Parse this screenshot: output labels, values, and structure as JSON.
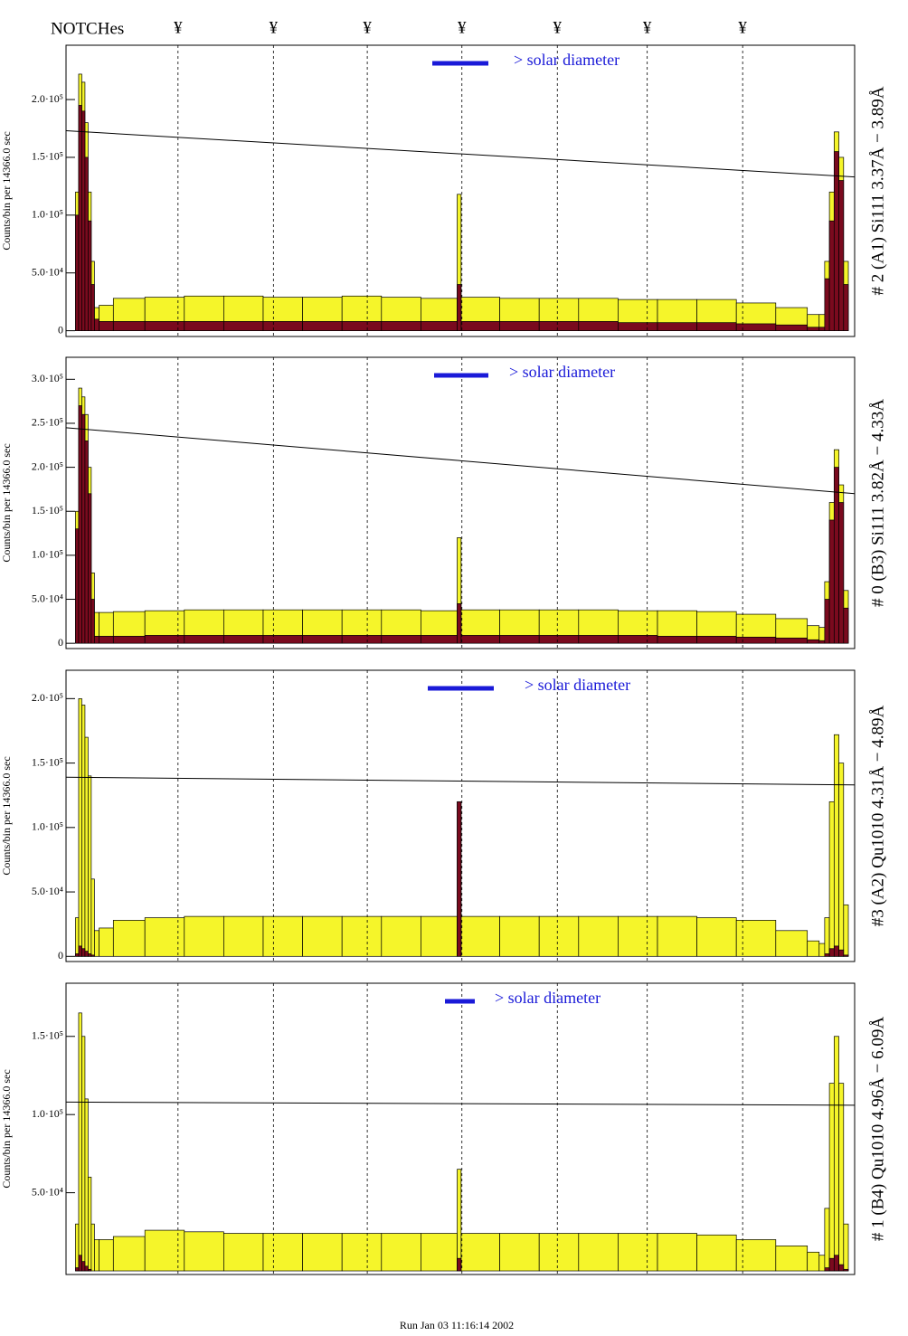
{
  "notches": {
    "label": "NOTCHes",
    "symbol": "¥",
    "x": [
      14.2,
      26.3,
      38.2,
      50.2,
      62.3,
      73.7,
      85.8
    ]
  },
  "footer": "Run    Jan 03 11:16:14 2002",
  "chart_data": [
    {
      "type": "histogram",
      "title": "# 2 (A1) Si111  3.37Å − 3.89Å",
      "ylabel": "Counts/bin per  14366.0 sec",
      "legend_label": "> solar diameter",
      "legend_color": "#1a1ad8",
      "xlim": [
        0,
        100
      ],
      "ylim": [
        -5000,
        247000
      ],
      "yticks": [
        0,
        {
          "value": 50000,
          "label": "5.0·10⁴"
        },
        {
          "value": 100000,
          "label": "1.0·10⁵"
        },
        {
          "value": 150000,
          "label": "1.5·10⁵"
        },
        {
          "value": 200000,
          "label": "2.0·10⁵"
        }
      ],
      "fit": [
        173000,
        133000
      ],
      "bins": [
        0,
        1.2,
        1.6,
        2.0,
        2.4,
        2.8,
        3.2,
        3.6,
        4.2,
        6,
        10,
        15,
        20,
        25,
        30,
        35,
        40,
        45,
        49.6,
        50.1,
        55,
        60,
        65,
        70,
        75,
        80,
        85,
        90,
        94,
        95.5,
        96.2,
        96.8,
        97.4,
        98,
        98.6,
        99.2,
        100
      ],
      "series": [
        {
          "color": "#f5f52a",
          "values": [
            0,
            120000,
            222000,
            215000,
            180000,
            120000,
            60000,
            20000,
            22000,
            28000,
            29000,
            30000,
            30000,
            29000,
            29000,
            30000,
            29000,
            28000,
            118000,
            29000,
            28000,
            28000,
            28000,
            27000,
            27000,
            27000,
            24000,
            20000,
            14000,
            14000,
            60000,
            120000,
            172000,
            150000,
            60000,
            0
          ]
        },
        {
          "color": "#7a0a1e",
          "values": [
            0,
            100000,
            195000,
            190000,
            150000,
            95000,
            40000,
            10000,
            8000,
            8000,
            8000,
            8000,
            8000,
            8000,
            8000,
            8000,
            8000,
            8000,
            40000,
            8000,
            8000,
            8000,
            8000,
            7000,
            7000,
            7000,
            6000,
            5000,
            3000,
            3000,
            45000,
            95000,
            155000,
            130000,
            40000,
            0
          ]
        }
      ]
    },
    {
      "type": "histogram",
      "title": "# 0 (B3) Si111  3.82Å − 4.33Å",
      "ylabel": "Counts/bin per  14366.0 sec",
      "legend_label": "> solar diameter",
      "legend_color": "#1a1ad8",
      "xlim": [
        0,
        100
      ],
      "ylim": [
        -6000,
        325000
      ],
      "yticks": [
        0,
        {
          "value": 50000,
          "label": "5.0·10⁴"
        },
        {
          "value": 100000,
          "label": "1.0·10⁵"
        },
        {
          "value": 150000,
          "label": "1.5·10⁵"
        },
        {
          "value": 200000,
          "label": "2.0·10⁵"
        },
        {
          "value": 250000,
          "label": "2.5·10⁵"
        },
        {
          "value": 300000,
          "label": "3.0·10⁵"
        }
      ],
      "fit": [
        245000,
        170000
      ],
      "bins": [
        0,
        1.2,
        1.6,
        2.0,
        2.4,
        2.8,
        3.2,
        3.6,
        4.2,
        6,
        10,
        15,
        20,
        25,
        30,
        35,
        40,
        45,
        49.6,
        50.1,
        55,
        60,
        65,
        70,
        75,
        80,
        85,
        90,
        94,
        95.5,
        96.2,
        96.8,
        97.4,
        98,
        98.6,
        99.2,
        100
      ],
      "series": [
        {
          "color": "#f5f52a",
          "values": [
            0,
            150000,
            290000,
            280000,
            260000,
            200000,
            80000,
            35000,
            35000,
            36000,
            37000,
            38000,
            38000,
            38000,
            38000,
            38000,
            38000,
            37000,
            120000,
            38000,
            38000,
            38000,
            38000,
            37000,
            37000,
            36000,
            33000,
            28000,
            20000,
            18000,
            70000,
            160000,
            220000,
            180000,
            60000,
            0
          ]
        },
        {
          "color": "#7a0a1e",
          "values": [
            0,
            130000,
            270000,
            260000,
            230000,
            170000,
            50000,
            8000,
            8000,
            8000,
            9000,
            9000,
            9000,
            9000,
            9000,
            9000,
            9000,
            9000,
            45000,
            9000,
            9000,
            9000,
            9000,
            9000,
            8000,
            8000,
            7000,
            6000,
            4000,
            3000,
            50000,
            140000,
            200000,
            160000,
            40000,
            0
          ]
        }
      ]
    },
    {
      "type": "histogram",
      "title": "#3 (A2) Qu1010  4.31Å − 4.89Å",
      "ylabel": "Counts/bin per  14366.0 sec",
      "legend_label": "> solar diameter",
      "legend_color": "#1a1ad8",
      "xlim": [
        0,
        100
      ],
      "ylim": [
        -4000,
        222000
      ],
      "yticks": [
        0,
        {
          "value": 50000,
          "label": "5.0·10⁴"
        },
        {
          "value": 100000,
          "label": "1.0·10⁵"
        },
        {
          "value": 150000,
          "label": "1.5·10⁵"
        },
        {
          "value": 200000,
          "label": "2.0·10⁵"
        }
      ],
      "fit": [
        139000,
        133000
      ],
      "bins": [
        0,
        1.2,
        1.6,
        2.0,
        2.4,
        2.8,
        3.2,
        3.6,
        4.2,
        6,
        10,
        15,
        20,
        25,
        30,
        35,
        40,
        45,
        49.6,
        50.1,
        55,
        60,
        65,
        70,
        75,
        80,
        85,
        90,
        94,
        95.5,
        96.2,
        96.8,
        97.4,
        98,
        98.6,
        99.2,
        100
      ],
      "series": [
        {
          "color": "#f5f52a",
          "values": [
            0,
            30000,
            200000,
            195000,
            170000,
            140000,
            60000,
            20000,
            22000,
            28000,
            30000,
            31000,
            31000,
            31000,
            31000,
            31000,
            31000,
            31000,
            120000,
            31000,
            31000,
            31000,
            31000,
            31000,
            31000,
            30000,
            28000,
            20000,
            12000,
            10000,
            30000,
            120000,
            172000,
            150000,
            40000,
            0
          ]
        },
        {
          "color": "#7a0a1e",
          "values": [
            0,
            2000,
            8000,
            6000,
            4000,
            2000,
            1000,
            0,
            0,
            0,
            0,
            0,
            0,
            0,
            0,
            0,
            0,
            0,
            120000,
            0,
            0,
            0,
            0,
            0,
            0,
            0,
            0,
            0,
            0,
            0,
            2000,
            6000,
            8000,
            5000,
            1000,
            0
          ]
        }
      ]
    },
    {
      "type": "histogram",
      "title": "# 1 (B4) Qu1010 4.96Å − 6.09Å",
      "ylabel": "Counts/bin per  14366.0 sec",
      "legend_label": "> solar diameter",
      "legend_color": "#1a1ad8",
      "xlim": [
        0,
        100
      ],
      "ylim": [
        -2300,
        184000
      ],
      "yticks": [
        {
          "value": 50000,
          "label": "5.0·10⁴"
        },
        {
          "value": 100000,
          "label": "1.0·10⁵"
        },
        {
          "value": 150000,
          "label": "1.5·10⁵"
        }
      ],
      "fit": [
        108000,
        106000
      ],
      "bins": [
        0,
        1.2,
        1.6,
        2.0,
        2.4,
        2.8,
        3.2,
        3.6,
        4.2,
        6,
        10,
        15,
        20,
        25,
        30,
        35,
        40,
        45,
        49.6,
        50.1,
        55,
        60,
        65,
        70,
        75,
        80,
        85,
        90,
        94,
        95.5,
        96.2,
        96.8,
        97.4,
        98,
        98.6,
        99.2,
        100
      ],
      "series": [
        {
          "color": "#f5f52a",
          "values": [
            0,
            30000,
            165000,
            150000,
            110000,
            60000,
            30000,
            20000,
            20000,
            22000,
            26000,
            25000,
            24000,
            24000,
            24000,
            24000,
            24000,
            24000,
            65000,
            24000,
            24000,
            24000,
            24000,
            24000,
            24000,
            23000,
            20000,
            16000,
            12000,
            10000,
            40000,
            120000,
            150000,
            120000,
            30000,
            0
          ]
        },
        {
          "color": "#7a0a1e",
          "values": [
            0,
            2000,
            10000,
            6000,
            3000,
            1000,
            0,
            0,
            0,
            0,
            0,
            0,
            0,
            0,
            0,
            0,
            0,
            0,
            8000,
            0,
            0,
            0,
            0,
            0,
            0,
            0,
            0,
            0,
            0,
            0,
            2000,
            8000,
            10000,
            4000,
            1000,
            0
          ]
        }
      ]
    }
  ]
}
